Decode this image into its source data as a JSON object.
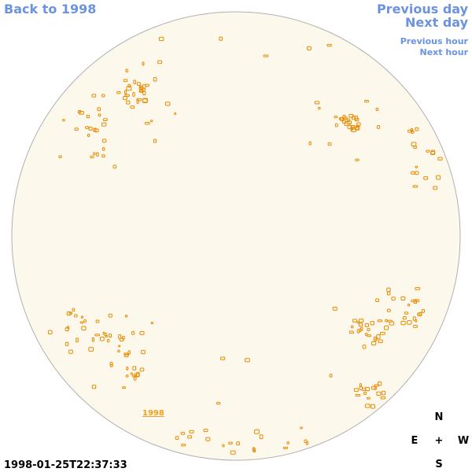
{
  "nav": {
    "back": "Back to 1998",
    "previous_day": "Previous day",
    "next_day": "Next day",
    "previous_hour": "Previous hour",
    "next_hour": "Next hour"
  },
  "disk_label": "1998",
  "compass": {
    "north": "N",
    "east": "E",
    "center": "+",
    "west": "W",
    "south": "S"
  },
  "timestamp": "1998-01-25T22:37:33"
}
